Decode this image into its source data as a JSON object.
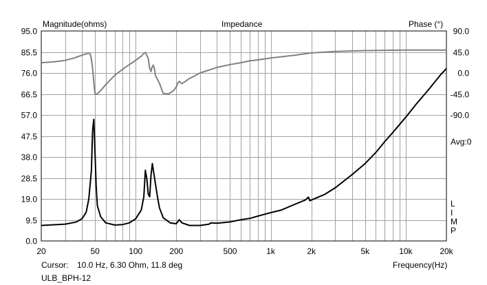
{
  "chart_data": {
    "type": "line",
    "title": "Impedance",
    "ylabel_left": "Magnitude(ohms)",
    "ylabel_right": "Phase (°)",
    "xlabel": "Frequency(Hz)",
    "xscale": "log",
    "xlim": [
      20,
      20000
    ],
    "ylim_left": [
      0,
      95
    ],
    "ylim_right": [
      -360,
      90
    ],
    "grid": true,
    "x_ticks": [
      {
        "value": 20,
        "label": "20"
      },
      {
        "value": 50,
        "label": "50"
      },
      {
        "value": 100,
        "label": "100"
      },
      {
        "value": 200,
        "label": "200"
      },
      {
        "value": 500,
        "label": "500"
      },
      {
        "value": 1000,
        "label": "1k"
      },
      {
        "value": 2000,
        "label": "2k"
      },
      {
        "value": 5000,
        "label": "5k"
      },
      {
        "value": 10000,
        "label": "10k"
      },
      {
        "value": 20000,
        "label": "20k"
      }
    ],
    "y_left_ticks": [
      "95.0",
      "85.5",
      "76.0",
      "66.5",
      "57.0",
      "47.5",
      "38.0",
      "28.5",
      "19.0",
      "9.5",
      "0.0"
    ],
    "y_right_ticks": [
      "90.0",
      "45.0",
      "0.0",
      "-45.0",
      "-90.0"
    ],
    "right_side_text": [
      "Avg:0",
      "L",
      "I",
      "M",
      "P"
    ],
    "series": [
      {
        "name": "Magnitude",
        "color": "#000000",
        "x": [
          20,
          30,
          36,
          40,
          43,
          45,
          47,
          48,
          49,
          50,
          51,
          52,
          55,
          60,
          70,
          80,
          90,
          100,
          110,
          115,
          118,
          121,
          124,
          127,
          130,
          133,
          136,
          140,
          145,
          150,
          160,
          180,
          200,
          210,
          220,
          250,
          300,
          350,
          360,
          400,
          500,
          600,
          700,
          800,
          1000,
          1200,
          1500,
          1800,
          1900,
          1950,
          2000,
          2500,
          3000,
          4000,
          5000,
          6000,
          7000,
          8000,
          10000,
          12000,
          15000,
          18000,
          20000
        ],
        "y": [
          7.0,
          7.6,
          8.5,
          10,
          13,
          19,
          32,
          50,
          55,
          40,
          25,
          16,
          11,
          8.2,
          7.2,
          7.4,
          8.2,
          10,
          14,
          20,
          32,
          28,
          21,
          20,
          30,
          35,
          31,
          26,
          20,
          15,
          10.5,
          8.2,
          7.8,
          9.6,
          8.2,
          7.0,
          7.0,
          7.6,
          8.2,
          8.0,
          8.6,
          9.6,
          10.2,
          11.2,
          12.8,
          14,
          16.5,
          18.5,
          19.8,
          18.2,
          18.5,
          21,
          24,
          30,
          35,
          40,
          45,
          49,
          56,
          62,
          69,
          75,
          78
        ]
      },
      {
        "name": "Phase",
        "color": "#808080",
        "x": [
          20,
          25,
          30,
          35,
          40,
          43,
          45,
          46,
          47,
          48,
          49,
          50,
          52,
          55,
          60,
          70,
          80,
          90,
          100,
          110,
          115,
          118,
          121,
          124,
          127,
          130,
          132,
          135,
          138,
          140,
          150,
          160,
          175,
          190,
          200,
          205,
          210,
          220,
          250,
          300,
          400,
          500,
          600,
          700,
          800,
          1000,
          1500,
          2000,
          3000,
          5000,
          10000,
          20000
        ],
        "y": [
          22,
          24,
          27,
          32,
          38,
          41,
          43,
          41,
          30,
          10,
          -20,
          -45,
          -45,
          -38,
          -25,
          -5,
          8,
          18,
          27,
          36,
          42,
          44,
          38,
          30,
          10,
          3,
          12,
          17,
          8,
          -5,
          -22,
          -44,
          -45,
          -38,
          -30,
          -22,
          -18,
          -23,
          -12,
          0,
          12,
          18,
          22,
          26,
          28,
          32,
          38,
          43,
          46,
          48,
          49,
          49
        ]
      }
    ]
  },
  "labels": {
    "magnitude": "Magnitude(ohms)",
    "title": "Impedance",
    "phase": "Phase (°)",
    "avg": "Avg:0",
    "limp_l": "L",
    "limp_i": "I",
    "limp_m": "M",
    "limp_p": "P",
    "cursor_label": "Cursor:",
    "cursor_value": "10.0 Hz, 6.30 Ohm, 11.8 deg",
    "frequency": "Frequency(Hz)",
    "file_name": "ULB_BPH-12"
  }
}
